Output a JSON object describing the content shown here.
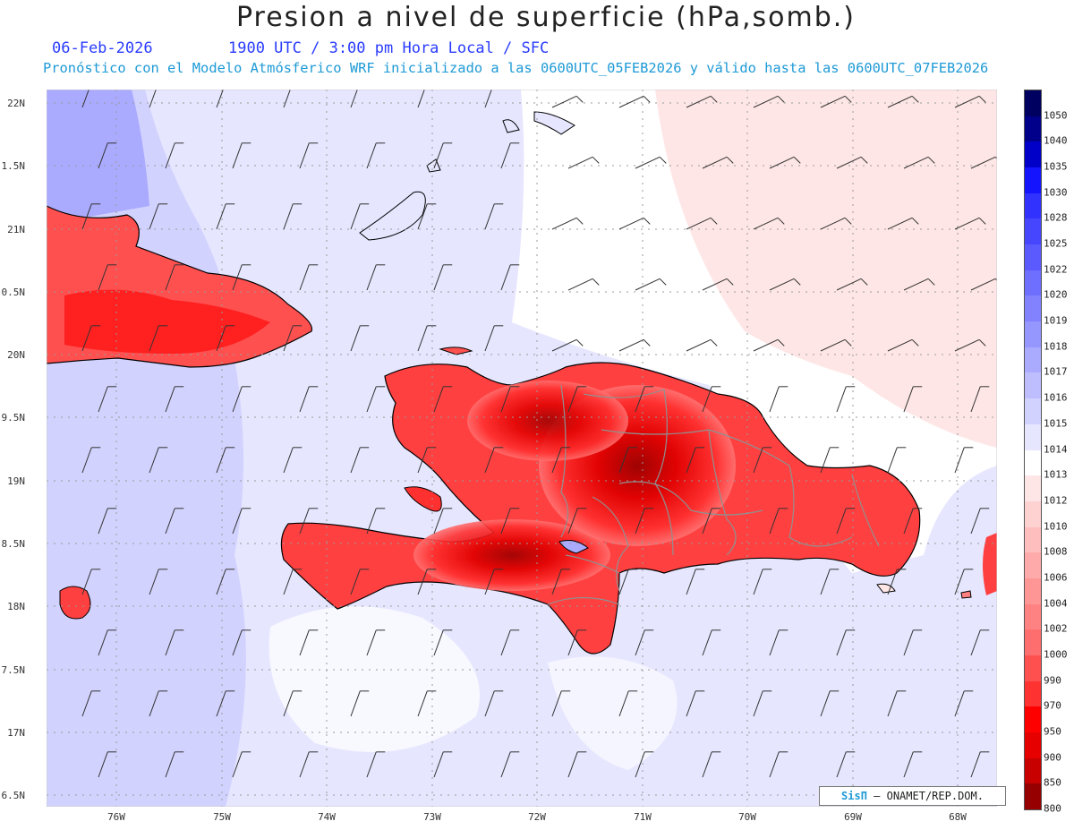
{
  "header": {
    "title": "Presion a nivel de superficie (hPa,somb.)",
    "date": "06-Feb-2026",
    "time": "1900 UTC / 3:00 pm Hora Local / SFC",
    "forecast": "Pronóstico con el Modelo Atmósferico WRF inicializado a las 0600UTC_05FEB2026 y válido hasta las  0600UTC_07FEB2026"
  },
  "axes": {
    "lat_labels": [
      "22N",
      "1.5N",
      "21N",
      "0.5N",
      "20N",
      "9.5N",
      "19N",
      "8.5N",
      "18N",
      "7.5N",
      "17N",
      "6.5N"
    ],
    "lon_labels": [
      "76W",
      "75W",
      "74W",
      "73W",
      "72W",
      "71W",
      "70W",
      "69W",
      "68W"
    ]
  },
  "colorbar": {
    "levels": [
      "1050",
      "1040",
      "1035",
      "1030",
      "1028",
      "1025",
      "1022",
      "1020",
      "1019",
      "1018",
      "1017",
      "1016",
      "1015",
      "1014",
      "1013",
      "1012",
      "1010",
      "1008",
      "1006",
      "1004",
      "1002",
      "1000",
      "990",
      "970",
      "950",
      "900",
      "850",
      "800"
    ],
    "colors": [
      "#000060",
      "#00008a",
      "#0000c8",
      "#1414ff",
      "#3232ff",
      "#4646ff",
      "#5a5aff",
      "#6e6eff",
      "#8282ff",
      "#9696ff",
      "#aaaaff",
      "#bebeff",
      "#d2d2ff",
      "#e6e6ff",
      "#ffffff",
      "#ffe6e6",
      "#ffd2d2",
      "#ffbebe",
      "#ffaaaa",
      "#ff9696",
      "#ff8282",
      "#ff6e6e",
      "#ff5050",
      "#ff3232",
      "#ff0000",
      "#e60000",
      "#c80000",
      "#960000"
    ]
  },
  "credit": {
    "logo": "SisΠ",
    "text": " – ONAMET/REP.DOM."
  }
}
